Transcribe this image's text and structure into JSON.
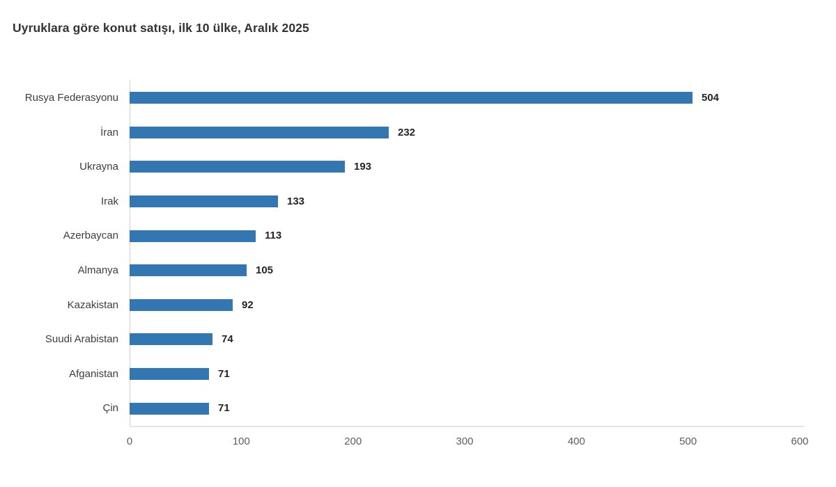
{
  "title": "Uyruklara göre konut satışı, ilk 10 ülke, Aralık 2025",
  "chart_data": {
    "type": "bar",
    "orientation": "horizontal",
    "title": "Uyruklara göre konut satışı, ilk 10 ülke, Aralık 2025",
    "categories": [
      "Rusya Federasyonu",
      "İran",
      "Ukrayna",
      "Irak",
      "Azerbaycan",
      "Almanya",
      "Kazakistan",
      "Suudi Arabistan",
      "Afganistan",
      "Çin"
    ],
    "values": [
      504,
      232,
      193,
      133,
      113,
      105,
      92,
      74,
      71,
      71
    ],
    "xlabel": "",
    "ylabel": "",
    "xlim": [
      0,
      600
    ],
    "x_ticks": [
      0,
      100,
      200,
      300,
      400,
      500,
      600
    ],
    "bar_color": "#3277b2",
    "value_labels_shown": true,
    "grid": false,
    "legend": "none",
    "background_color": "#ffffff"
  }
}
